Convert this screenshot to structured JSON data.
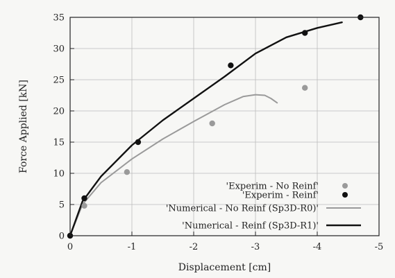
{
  "chart_data": {
    "type": "line",
    "xlabel": "Displacement [cm]",
    "ylabel": "Force Applied [kN]",
    "xlim": [
      0,
      -5
    ],
    "ylim": [
      0,
      35
    ],
    "x_ticks": [
      0,
      -1,
      -2,
      -3,
      -4,
      -5
    ],
    "x_tick_labels": [
      "0",
      "-1",
      "-2",
      "-3",
      "-4",
      "-5"
    ],
    "y_ticks": [
      0,
      5,
      10,
      15,
      20,
      25,
      30,
      35
    ],
    "y_tick_labels": [
      "0",
      "5",
      "10",
      "15",
      "20",
      "25",
      "30",
      "35"
    ],
    "grid": true,
    "legend_position": "bottom-right",
    "series": [
      {
        "name": "'Experim - No Reinf'",
        "kind": "scatter",
        "color": "#9a9a9a",
        "x": [
          0,
          -0.23,
          -0.92,
          -2.3,
          -3.8
        ],
        "y": [
          0,
          4.8,
          10.2,
          18.0,
          23.7
        ]
      },
      {
        "name": "'Experim - Reinf'",
        "kind": "scatter",
        "color": "#111111",
        "x": [
          0,
          -0.23,
          -1.1,
          -2.6,
          -3.8,
          -4.7
        ],
        "y": [
          0,
          6.0,
          15.0,
          27.3,
          32.5,
          35.0
        ]
      },
      {
        "name": "'Numerical - No Reinf (Sp3D-R0)'",
        "kind": "line",
        "color": "#9a9a9a",
        "x": [
          0,
          -0.2,
          -0.5,
          -1.0,
          -1.5,
          -2.0,
          -2.5,
          -2.8,
          -3.0,
          -3.15,
          -3.25,
          -3.35
        ],
        "y": [
          0,
          5.0,
          8.5,
          12.3,
          15.5,
          18.3,
          21.0,
          22.3,
          22.6,
          22.5,
          22.0,
          21.3
        ]
      },
      {
        "name": "'Numerical - Reinf (Sp3D-R1)'",
        "kind": "line",
        "color": "#111111",
        "x": [
          0,
          -0.2,
          -0.5,
          -1.0,
          -1.5,
          -2.0,
          -2.5,
          -3.0,
          -3.5,
          -4.0,
          -4.4
        ],
        "y": [
          0,
          5.5,
          9.5,
          14.5,
          18.5,
          22.0,
          25.5,
          29.2,
          31.8,
          33.3,
          34.2
        ]
      }
    ]
  }
}
